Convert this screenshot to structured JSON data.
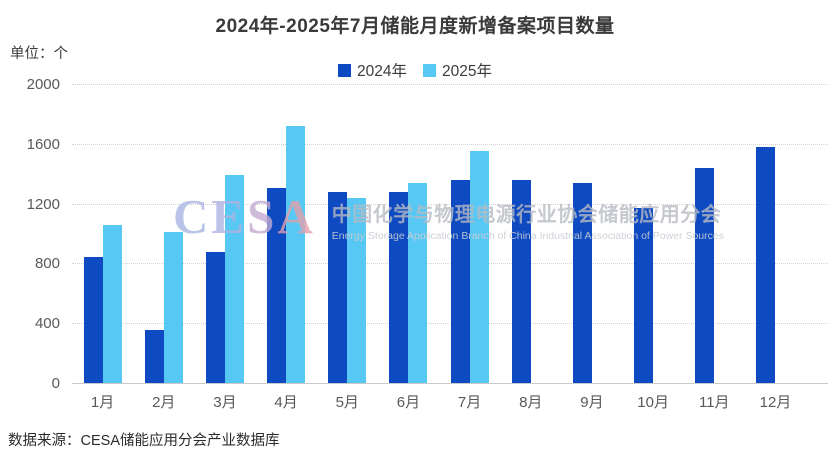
{
  "title": "2024年-2025年7月储能月度新增备案项目数量",
  "unit_label": "单位：个",
  "legend": {
    "items": [
      {
        "label": "2024年",
        "color": "#0e4ac2"
      },
      {
        "label": "2025年",
        "color": "#57c8f4"
      }
    ]
  },
  "watermark": {
    "logo": "CESA",
    "cn": "中国化学与物理电源行业协会储能应用分会",
    "en": "Energy Storage Application Branch of China Industrial Association of Power Sources"
  },
  "source": "数据来源：CESA储能应用分会产业数据库",
  "chart_data": {
    "type": "bar",
    "title": "2024年-2025年7月储能月度新增备案项目数量",
    "ylabel": "单位：个",
    "categories": [
      "1月",
      "2月",
      "3月",
      "4月",
      "5月",
      "6月",
      "7月",
      "8月",
      "9月",
      "10月",
      "11月",
      "12月"
    ],
    "series": [
      {
        "name": "2024年",
        "color": "#0e4ac2",
        "values": [
          840,
          355,
          875,
          1305,
          1280,
          1275,
          1360,
          1355,
          1340,
          1170,
          1440,
          1580
        ]
      },
      {
        "name": "2025年",
        "color": "#57c8f4",
        "values": [
          1060,
          1010,
          1390,
          1720,
          1235,
          1340,
          1555,
          null,
          null,
          null,
          null,
          null
        ]
      }
    ],
    "ylim": [
      0,
      2000
    ],
    "yticks": [
      0,
      400,
      800,
      1200,
      1600,
      2000
    ],
    "grid": true,
    "grid_style": "dotted",
    "legend_position": "top"
  }
}
